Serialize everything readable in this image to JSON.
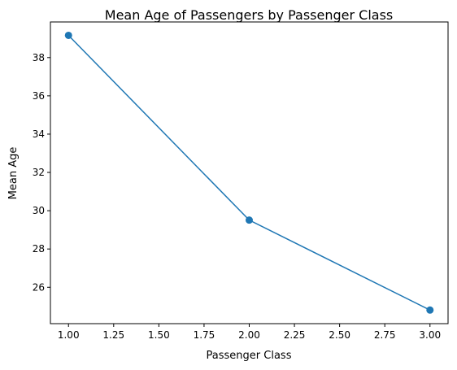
{
  "chart_data": {
    "type": "line",
    "title": "Mean Age of Passengers by Passenger Class",
    "xlabel": "Passenger Class",
    "ylabel": "Mean Age",
    "x": [
      1,
      2,
      3
    ],
    "series": [
      {
        "values": [
          39.16,
          29.51,
          24.81
        ],
        "color": "#1f77b4",
        "marker": "circle"
      }
    ],
    "xlim": [
      0.9,
      3.1
    ],
    "ylim": [
      24.1,
      39.86
    ],
    "xticks": [
      1.0,
      1.25,
      1.5,
      1.75,
      2.0,
      2.25,
      2.5,
      2.75,
      3.0
    ],
    "xtick_labels": [
      "1.00",
      "1.25",
      "1.50",
      "1.75",
      "2.00",
      "2.25",
      "2.50",
      "2.75",
      "3.00"
    ],
    "yticks": [
      26,
      28,
      30,
      32,
      34,
      36,
      38
    ],
    "ytick_labels": [
      "26",
      "28",
      "30",
      "32",
      "34",
      "36",
      "38"
    ],
    "grid": false,
    "legend": "none"
  }
}
